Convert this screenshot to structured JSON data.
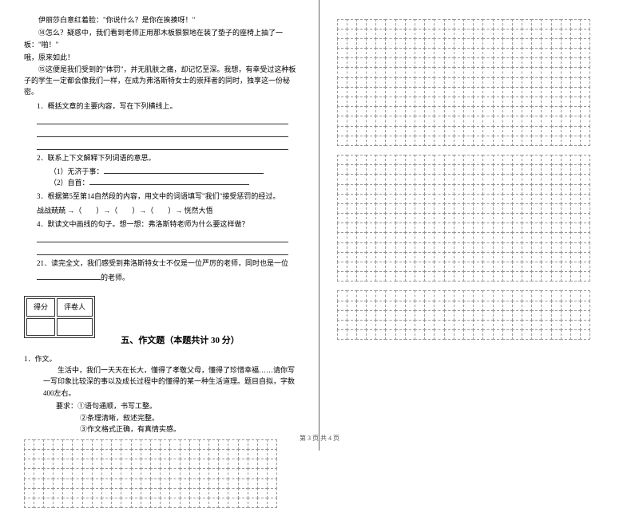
{
  "passage": {
    "p1": "伊丽莎白意红着脸：\"你说什么？是你在挨揍呀！\"",
    "p2": "⑭怎么？疑惑中，我们看到老师正用那木板狠狠地在装了垫子的座椅上抽了一板：\"啪！\"",
    "p3": "哦，原来如此！",
    "p4": "⑮这便是我们受到的\"体罚\"，并无肌肤之痛，却记忆至深。我想，有幸受过这种板子的学生一定都会像我们一样，在成为弗洛斯特女士的崇拜者的同时，独享这一份秘密。"
  },
  "questions": {
    "q1": "1．概括文章的主要内容，写在下列横线上。",
    "q2": "2．联系上下文解释下列词语的意思。",
    "q2a": "（1）无济于事：",
    "q2b": "（2）自首：",
    "q3": "3．根据第5至第14自然段的内容，用文中的词语填写\"我们\"接受惩罚的经过。",
    "q3flow": "战战兢兢 →（　　）→（　　）→（　　）→ 恍然大悟",
    "q4": "4．默读文中画线的句子。想一想：弗洛斯特老师为什么要这样做？",
    "q21": "21．读完全文，我们感受到弗洛斯特女士不仅是一位严厉的老师，同时也是一位",
    "q21b": "的老师。"
  },
  "score": {
    "label1": "得分",
    "label2": "评卷人"
  },
  "section": {
    "title": "五、作文题（本题共计 30 分）"
  },
  "essay": {
    "q": "1．作文。",
    "p1": "生活中，我们一天天在长大，懂得了孝敬父母，懂得了珍惜幸福……请你写一写印象比较深的事以及成长过程中的懂得的某一种生活道理。题目自拟，字数400左右。",
    "req": "要求：①语句通顺，书写工整。",
    "req2": "②条理清晰，叙述完整。",
    "req3": "③作文格式正确，有真情实感。"
  },
  "footer": "第 3 页 共 4 页",
  "grid": {
    "leftRows": 7,
    "leftCols": 26,
    "rightRows1": 13,
    "rightRows2": 13,
    "rightRows3": 5,
    "rightCols": 26,
    "cellColor": "#999"
  }
}
